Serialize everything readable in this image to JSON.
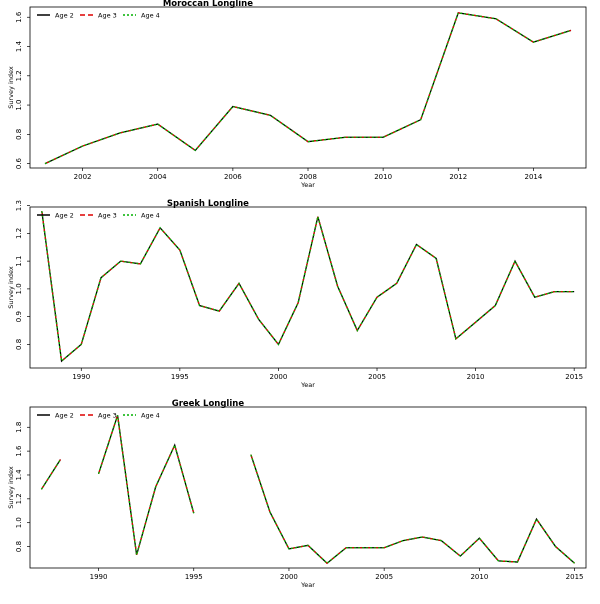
{
  "chart_data": [
    {
      "type": "line",
      "title": "Moroccan Longline",
      "xlabel": "Year",
      "ylabel": "Survey index",
      "xlim": [
        2000.6,
        2015.4
      ],
      "ylim": [
        0.57,
        1.67
      ],
      "xticks": [
        2002,
        2004,
        2006,
        2008,
        2010,
        2012,
        2014
      ],
      "yticks": [
        0.6,
        0.8,
        1.0,
        1.2,
        1.4,
        1.6
      ],
      "legend_position": "top-left",
      "x": [
        2001,
        2002,
        2003,
        2004,
        2005,
        2006,
        2007,
        2008,
        2009,
        2010,
        2011,
        2012,
        2013,
        2014,
        2015
      ],
      "series": [
        {
          "name": "Age 2",
          "color": "#000000",
          "dash": "solid",
          "values": [
            0.6,
            0.72,
            0.81,
            0.87,
            0.69,
            0.99,
            0.93,
            0.75,
            0.78,
            0.78,
            0.9,
            1.63,
            1.59,
            1.43,
            1.51
          ]
        },
        {
          "name": "Age 3",
          "color": "#dd0000",
          "dash": "dashed",
          "values": [
            0.6,
            0.72,
            0.81,
            0.87,
            0.69,
            0.99,
            0.93,
            0.75,
            0.78,
            0.78,
            0.9,
            1.63,
            1.59,
            1.43,
            1.51
          ]
        },
        {
          "name": "Age 4",
          "color": "#00b000",
          "dash": "dotted",
          "values": [
            0.6,
            0.72,
            0.81,
            0.87,
            0.69,
            0.99,
            0.93,
            0.75,
            0.78,
            0.78,
            0.9,
            1.63,
            1.59,
            1.43,
            1.51
          ]
        }
      ]
    },
    {
      "type": "line",
      "title": "Spanish Longline",
      "xlabel": "Year",
      "ylabel": "Survey index",
      "xlim": [
        1987.4,
        2015.6
      ],
      "ylim": [
        0.715,
        1.295
      ],
      "xticks": [
        1990,
        1995,
        2000,
        2005,
        2010,
        2015
      ],
      "yticks": [
        0.8,
        0.9,
        1.0,
        1.1,
        1.2,
        1.3
      ],
      "legend_position": "top-left",
      "x": [
        1988,
        1989,
        1990,
        1991,
        1992,
        1993,
        1994,
        1995,
        1996,
        1997,
        1998,
        1999,
        2000,
        2001,
        2002,
        2003,
        2004,
        2005,
        2006,
        2007,
        2008,
        2009,
        2010,
        2011,
        2012,
        2013,
        2014,
        2015
      ],
      "series": [
        {
          "name": "Age 2",
          "color": "#000000",
          "dash": "solid",
          "values": [
            1.28,
            0.74,
            0.8,
            1.04,
            1.1,
            1.09,
            1.22,
            1.14,
            0.94,
            0.92,
            1.02,
            0.89,
            0.8,
            0.95,
            1.26,
            1.01,
            0.85,
            0.97,
            1.02,
            1.16,
            1.11,
            0.82,
            0.88,
            0.94,
            1.1,
            0.97,
            0.99,
            0.99
          ]
        },
        {
          "name": "Age 3",
          "color": "#dd0000",
          "dash": "dashed",
          "values": [
            1.28,
            0.74,
            0.8,
            1.04,
            1.1,
            1.09,
            1.22,
            1.14,
            0.94,
            0.92,
            1.02,
            0.89,
            0.8,
            0.95,
            1.26,
            1.01,
            0.85,
            0.97,
            1.02,
            1.16,
            1.11,
            0.82,
            0.88,
            0.94,
            1.1,
            0.97,
            0.99,
            0.99
          ]
        },
        {
          "name": "Age 4",
          "color": "#00b000",
          "dash": "dotted",
          "values": [
            1.28,
            0.74,
            0.8,
            1.04,
            1.1,
            1.09,
            1.22,
            1.14,
            0.94,
            0.92,
            1.02,
            0.89,
            0.8,
            0.95,
            1.26,
            1.01,
            0.85,
            0.97,
            1.02,
            1.16,
            1.11,
            0.82,
            0.88,
            0.94,
            1.1,
            0.97,
            0.99,
            0.99
          ]
        }
      ]
    },
    {
      "type": "line",
      "title": "Greek Longline",
      "xlabel": "Year",
      "ylabel": "Survey index",
      "xlim": [
        1986.4,
        2015.6
      ],
      "ylim": [
        0.62,
        1.97
      ],
      "xticks": [
        1990,
        1995,
        2000,
        2005,
        2010,
        2015
      ],
      "yticks": [
        0.8,
        1.0,
        1.2,
        1.4,
        1.6,
        1.8
      ],
      "legend_position": "top-left",
      "x": [
        1987,
        1988,
        1989,
        1990,
        1991,
        1992,
        1993,
        1994,
        1995,
        1996,
        1997,
        1998,
        1999,
        2000,
        2001,
        2002,
        2003,
        2004,
        2005,
        2006,
        2007,
        2008,
        2009,
        2010,
        2011,
        2012,
        2013,
        2014,
        2015
      ],
      "series": [
        {
          "name": "Age 2",
          "color": "#000000",
          "dash": "solid",
          "values": [
            1.28,
            1.53,
            null,
            1.41,
            1.9,
            0.73,
            1.3,
            1.65,
            1.08,
            null,
            null,
            1.57,
            1.09,
            0.78,
            0.81,
            0.66,
            0.79,
            0.79,
            0.79,
            0.85,
            0.88,
            0.85,
            0.72,
            0.87,
            0.68,
            0.67,
            1.03,
            0.8,
            0.66
          ]
        },
        {
          "name": "Age 3",
          "color": "#dd0000",
          "dash": "dashed",
          "values": [
            1.28,
            1.53,
            null,
            1.41,
            1.9,
            0.73,
            1.3,
            1.65,
            1.08,
            null,
            null,
            1.57,
            1.09,
            0.78,
            0.81,
            0.66,
            0.79,
            0.79,
            0.79,
            0.85,
            0.88,
            0.85,
            0.72,
            0.87,
            0.68,
            0.67,
            1.03,
            0.8,
            0.66
          ]
        },
        {
          "name": "Age 4",
          "color": "#00b000",
          "dash": "dotted",
          "values": [
            1.28,
            1.53,
            null,
            1.41,
            1.9,
            0.73,
            1.3,
            1.65,
            1.08,
            null,
            null,
            1.57,
            1.09,
            0.78,
            0.81,
            0.66,
            0.79,
            0.79,
            0.79,
            0.85,
            0.88,
            0.85,
            0.72,
            0.87,
            0.68,
            0.67,
            1.03,
            0.8,
            0.66
          ]
        }
      ]
    }
  ]
}
